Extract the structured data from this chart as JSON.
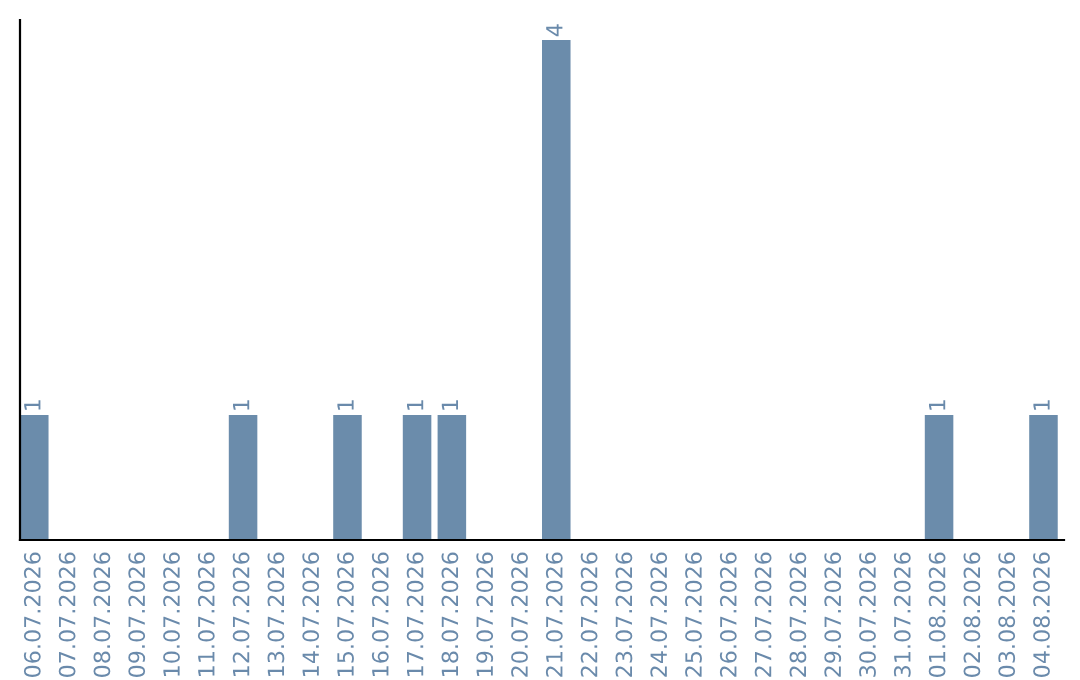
{
  "chart_data": {
    "type": "bar",
    "categories": [
      "06.07.2026",
      "07.07.2026",
      "08.07.2026",
      "09.07.2026",
      "10.07.2026",
      "11.07.2026",
      "12.07.2026",
      "13.07.2026",
      "14.07.2026",
      "15.07.2026",
      "16.07.2026",
      "17.07.2026",
      "18.07.2026",
      "19.07.2026",
      "20.07.2026",
      "21.07.2026",
      "22.07.2026",
      "23.07.2026",
      "24.07.2026",
      "25.07.2026",
      "26.07.2026",
      "27.07.2026",
      "28.07.2026",
      "29.07.2026",
      "30.07.2026",
      "31.07.2026",
      "01.08.2026",
      "02.08.2026",
      "03.08.2026",
      "04.08.2026"
    ],
    "values": [
      1,
      0,
      0,
      0,
      0,
      0,
      1,
      0,
      0,
      1,
      0,
      1,
      1,
      0,
      0,
      4,
      0,
      0,
      0,
      0,
      0,
      0,
      0,
      0,
      0,
      0,
      1,
      0,
      0,
      1
    ],
    "value_labels": [
      "1",
      null,
      null,
      null,
      null,
      null,
      "1",
      null,
      null,
      "1",
      null,
      "1",
      "1",
      null,
      null,
      "4",
      null,
      null,
      null,
      null,
      null,
      null,
      null,
      null,
      null,
      null,
      "1",
      null,
      null,
      "1"
    ],
    "color": "#6b8cab",
    "grid": false,
    "legend": false
  }
}
